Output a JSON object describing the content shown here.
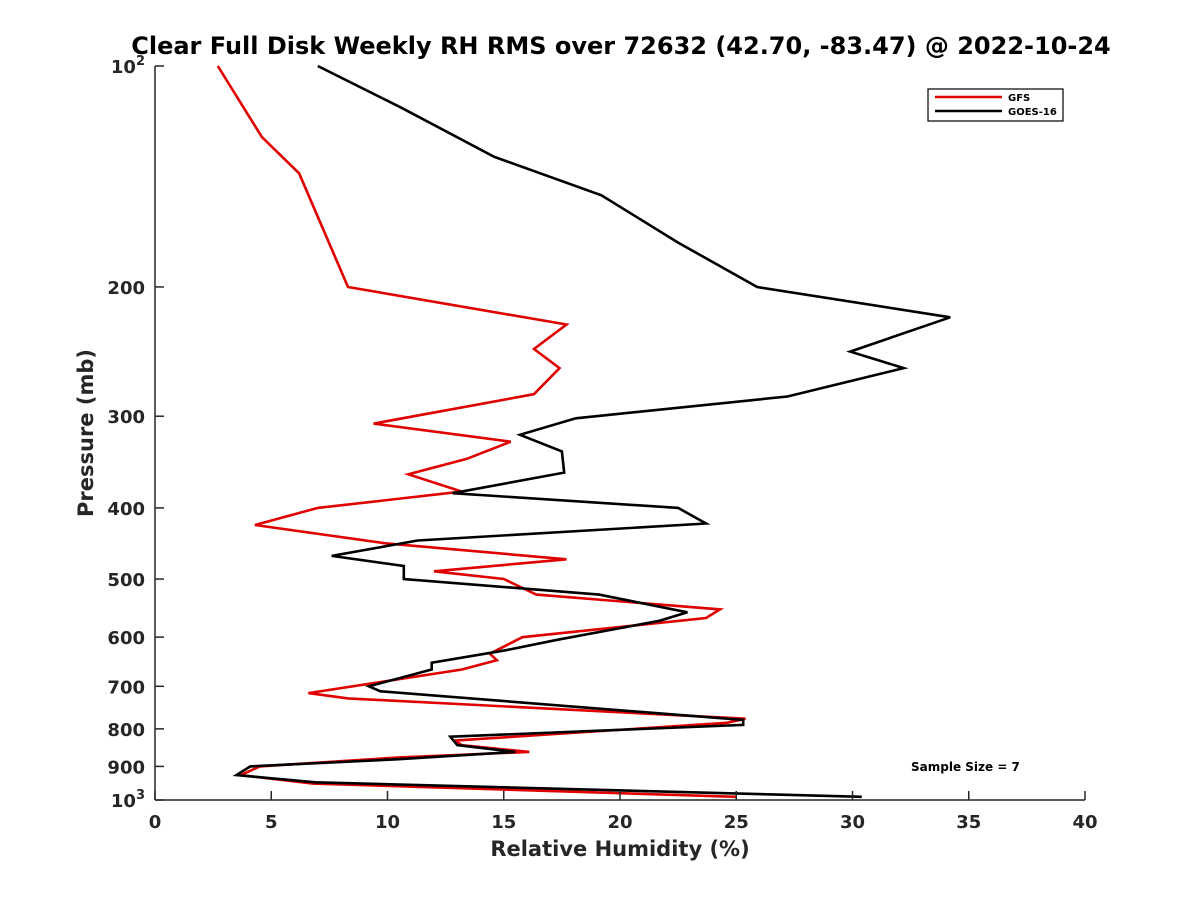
{
  "chart_data": {
    "type": "line",
    "title": "Clear Full Disk Weekly RH RMS over 72632 (42.70, -83.47) @ 2022-10-24",
    "xlabel": "Relative Humidity (%)",
    "ylabel": "Pressure (mb)",
    "xlim": [
      0,
      40
    ],
    "ylim": [
      100,
      1000
    ],
    "y_scale": "log",
    "y_reversed": true,
    "grid": false,
    "legend_position": "top-right",
    "annotation": "Sample Size = 7",
    "x_ticks": [
      "0",
      "5",
      "10",
      "15",
      "20",
      "25",
      "30",
      "35",
      "40"
    ],
    "y_ticks": [
      {
        "value": 100,
        "label": "10",
        "sup": "2"
      },
      {
        "value": 200,
        "label": "200",
        "sup": ""
      },
      {
        "value": 300,
        "label": "300",
        "sup": ""
      },
      {
        "value": 400,
        "label": "400",
        "sup": ""
      },
      {
        "value": 500,
        "label": "500",
        "sup": ""
      },
      {
        "value": 600,
        "label": "600",
        "sup": ""
      },
      {
        "value": 700,
        "label": "700",
        "sup": ""
      },
      {
        "value": 800,
        "label": "800",
        "sup": ""
      },
      {
        "value": 900,
        "label": "900",
        "sup": ""
      },
      {
        "value": 1000,
        "label": "10",
        "sup": "3"
      }
    ],
    "series": [
      {
        "name": "GFS",
        "color": "#e00000",
        "points": [
          [
            2.7,
            100
          ],
          [
            4.6,
            125
          ],
          [
            6.2,
            140
          ],
          [
            8.3,
            200
          ],
          [
            17.7,
            225
          ],
          [
            16.3,
            243
          ],
          [
            17.4,
            258
          ],
          [
            16.3,
            280
          ],
          [
            9.4,
            307
          ],
          [
            15.3,
            325
          ],
          [
            13.4,
            343
          ],
          [
            10.9,
            360
          ],
          [
            13.2,
            380
          ],
          [
            7.0,
            400
          ],
          [
            4.3,
            422
          ],
          [
            9.9,
            447
          ],
          [
            17.7,
            470
          ],
          [
            12.0,
            488
          ],
          [
            15.0,
            500
          ],
          [
            16.4,
            525
          ],
          [
            24.3,
            550
          ],
          [
            23.7,
            565
          ],
          [
            15.8,
            600
          ],
          [
            14.4,
            632
          ],
          [
            14.7,
            645
          ],
          [
            13.2,
            664
          ],
          [
            6.6,
            715
          ],
          [
            8.3,
            727
          ],
          [
            25.4,
            775
          ],
          [
            24.6,
            785
          ],
          [
            12.9,
            830
          ],
          [
            13.2,
            842
          ],
          [
            16.1,
            860
          ],
          [
            10.5,
            875
          ],
          [
            4.5,
            900
          ],
          [
            3.7,
            925
          ],
          [
            6.8,
            950
          ],
          [
            25.0,
            990
          ]
        ]
      },
      {
        "name": "GOES-16",
        "color": "#000000",
        "points": [
          [
            7.0,
            100
          ],
          [
            10.6,
            114
          ],
          [
            14.6,
            133
          ],
          [
            19.2,
            150
          ],
          [
            22.5,
            174
          ],
          [
            25.9,
            200
          ],
          [
            34.2,
            220
          ],
          [
            29.9,
            245
          ],
          [
            32.2,
            258
          ],
          [
            27.2,
            282
          ],
          [
            18.1,
            302
          ],
          [
            15.7,
            318
          ],
          [
            17.5,
            335
          ],
          [
            17.6,
            358
          ],
          [
            12.8,
            382
          ],
          [
            22.5,
            400
          ],
          [
            23.7,
            420
          ],
          [
            11.3,
            443
          ],
          [
            7.6,
            465
          ],
          [
            10.7,
            480
          ],
          [
            10.7,
            500
          ],
          [
            19.1,
            525
          ],
          [
            22.9,
            555
          ],
          [
            21.7,
            570
          ],
          [
            17.3,
            605
          ],
          [
            15.1,
            625
          ],
          [
            11.9,
            650
          ],
          [
            11.9,
            664
          ],
          [
            9.2,
            700
          ],
          [
            9.7,
            711
          ],
          [
            25.3,
            778
          ],
          [
            25.3,
            790
          ],
          [
            12.7,
            820
          ],
          [
            13.0,
            842
          ],
          [
            15.5,
            860
          ],
          [
            10.4,
            880
          ],
          [
            4.1,
            900
          ],
          [
            3.5,
            925
          ],
          [
            6.9,
            946
          ],
          [
            30.4,
            990
          ]
        ]
      }
    ]
  }
}
